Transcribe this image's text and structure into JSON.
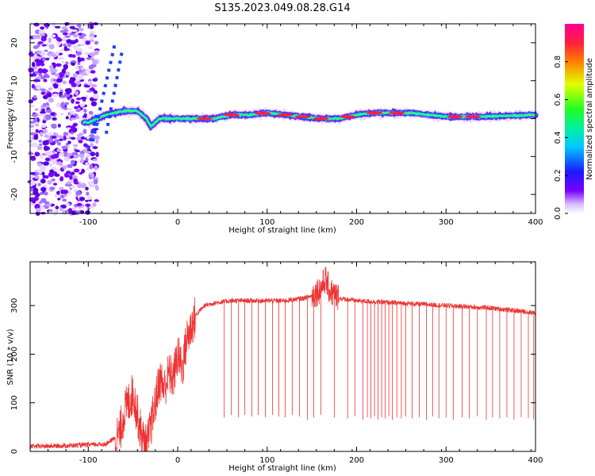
{
  "title": "S135.2023.049.08.28.G14",
  "colors": {
    "snr_line": "#ee3333",
    "axis": "#000000",
    "background": "#ffffff"
  },
  "chart_data": [
    {
      "type": "heatmap",
      "title": "",
      "xlabel": "Height of straight line (km)",
      "ylabel": "Frequency (Hz)",
      "xlim": [
        -165,
        400
      ],
      "ylim": [
        -25,
        25
      ],
      "x_ticks": [
        -100,
        0,
        100,
        200,
        300,
        400
      ],
      "y_ticks": [
        -20,
        -10,
        0,
        10,
        20
      ],
      "grid": false,
      "colorbar": {
        "label": "Normalized spectral amplitude",
        "range": [
          0,
          1
        ],
        "ticks": [
          0.0,
          0.2,
          0.4,
          0.6,
          0.8
        ],
        "colormap": "rainbow (white-violet-blue-cyan-green-yellow-red-magenta)"
      },
      "ridge": {
        "x": [
          -100,
          -80,
          -60,
          -45,
          -35,
          -30,
          -20,
          0,
          20,
          40,
          60,
          80,
          100,
          120,
          140,
          160,
          180,
          200,
          220,
          260,
          300,
          340,
          400
        ],
        "frequency": [
          -1,
          1,
          2,
          2,
          0,
          -2,
          0,
          0,
          0,
          0,
          1,
          1,
          1.5,
          1,
          0.5,
          0,
          0,
          1,
          1.5,
          1.5,
          0.5,
          0.5,
          1
        ]
      }
    },
    {
      "type": "line",
      "title": "",
      "xlabel": "Height of straight line (km)",
      "ylabel": "SNR (10 * v/v)",
      "xlim": [
        -165,
        400
      ],
      "ylim": [
        0,
        390
      ],
      "x_ticks": [
        -100,
        0,
        100,
        200,
        300,
        400
      ],
      "y_ticks": [
        0,
        100,
        200,
        300
      ],
      "grid": false,
      "series": [
        {
          "x": [
            -165,
            -120,
            -80,
            -65,
            -60,
            -50,
            -40,
            -35,
            -30,
            -25,
            -20,
            -15,
            -10,
            -5,
            0,
            5,
            10,
            20,
            30,
            40,
            60,
            80,
            100,
            120,
            140,
            150,
            160,
            165,
            170,
            180,
            200,
            250,
            300,
            350,
            400
          ],
          "values": [
            10,
            12,
            15,
            35,
            80,
            120,
            30,
            10,
            50,
            100,
            150,
            130,
            160,
            150,
            200,
            170,
            230,
            280,
            300,
            305,
            310,
            310,
            310,
            310,
            315,
            320,
            335,
            355,
            330,
            315,
            310,
            305,
            300,
            295,
            285
          ]
        }
      ],
      "dropouts": {
        "x": [
          52,
          60,
          68,
          75,
          83,
          90,
          98,
          106,
          113,
          120,
          128,
          136,
          145,
          152,
          160,
          175,
          190,
          198,
          207,
          212,
          216,
          220,
          224,
          228,
          232,
          236,
          240,
          245,
          250,
          255,
          262,
          270,
          278,
          285,
          292,
          300,
          308,
          318,
          326,
          335,
          345,
          352,
          360,
          368,
          376,
          384,
          392,
          398
        ],
        "min_values": [
          70,
          75,
          70,
          75,
          72,
          75,
          70,
          75,
          72,
          70,
          75,
          72,
          65,
          70,
          75,
          70,
          68,
          72,
          65,
          70,
          68,
          72,
          65,
          70,
          68,
          72,
          65,
          70,
          68,
          72,
          68,
          70,
          65,
          72,
          68,
          70,
          65,
          70,
          68,
          72,
          65,
          70,
          68,
          70,
          65,
          70,
          68,
          65
        ]
      }
    }
  ]
}
